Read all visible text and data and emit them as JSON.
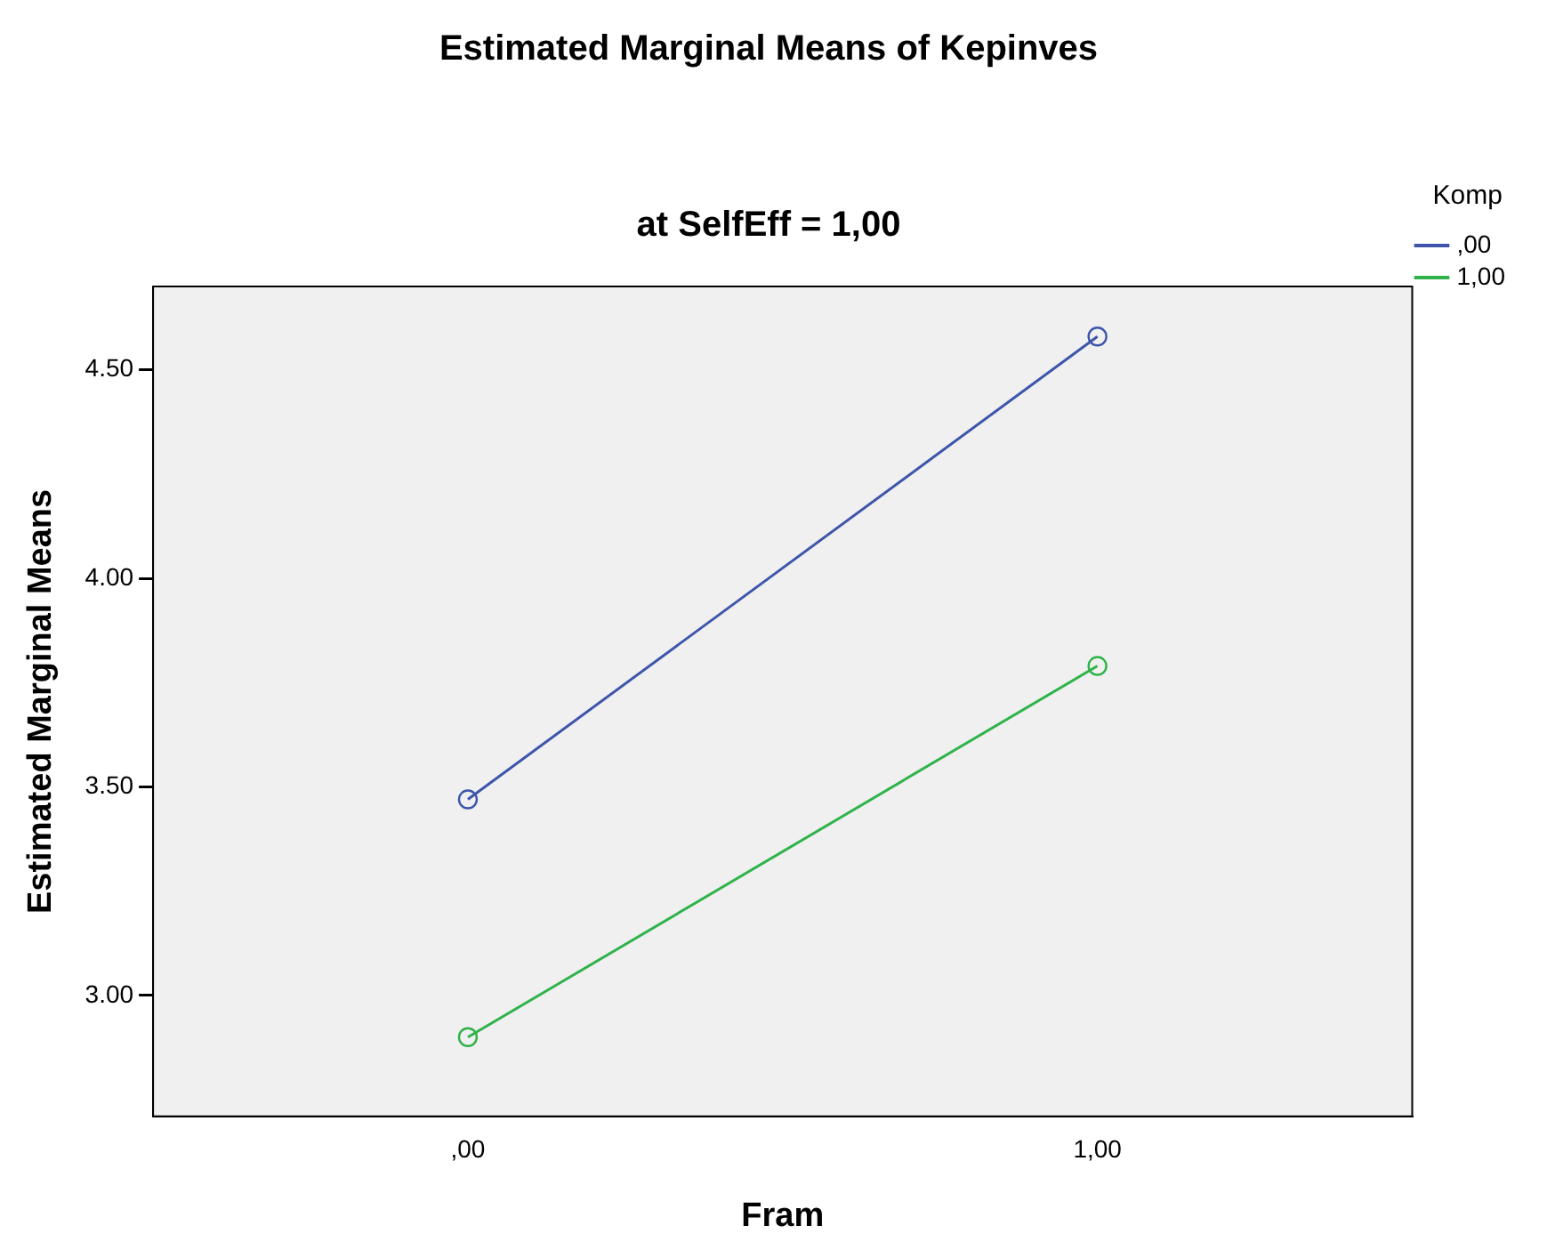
{
  "chart_data": {
    "type": "line",
    "title": "Estimated Marginal Means of Kepinves",
    "subtitle": "at SelfEff = 1,00",
    "xlabel": "Fram",
    "ylabel": "Estimated Marginal Means",
    "legend_title": "Komp",
    "categories": [
      ",00",
      "1,00"
    ],
    "series": [
      {
        "name": ",00",
        "color": "#3e55ab",
        "values": [
          3.47,
          4.58
        ]
      },
      {
        "name": "1,00",
        "color": "#2fb34a",
        "values": [
          2.9,
          3.79
        ]
      }
    ],
    "ylim": [
      2.71,
      4.7
    ],
    "yticks": [
      {
        "value": 3,
        "label": "3.00"
      },
      {
        "value": 3.5,
        "label": "3.50"
      },
      {
        "value": 4,
        "label": "4.00"
      },
      {
        "value": 4.5,
        "label": "4.50"
      }
    ],
    "grid": false,
    "legend": "top right",
    "marker": "circle",
    "line_style": "solid"
  }
}
